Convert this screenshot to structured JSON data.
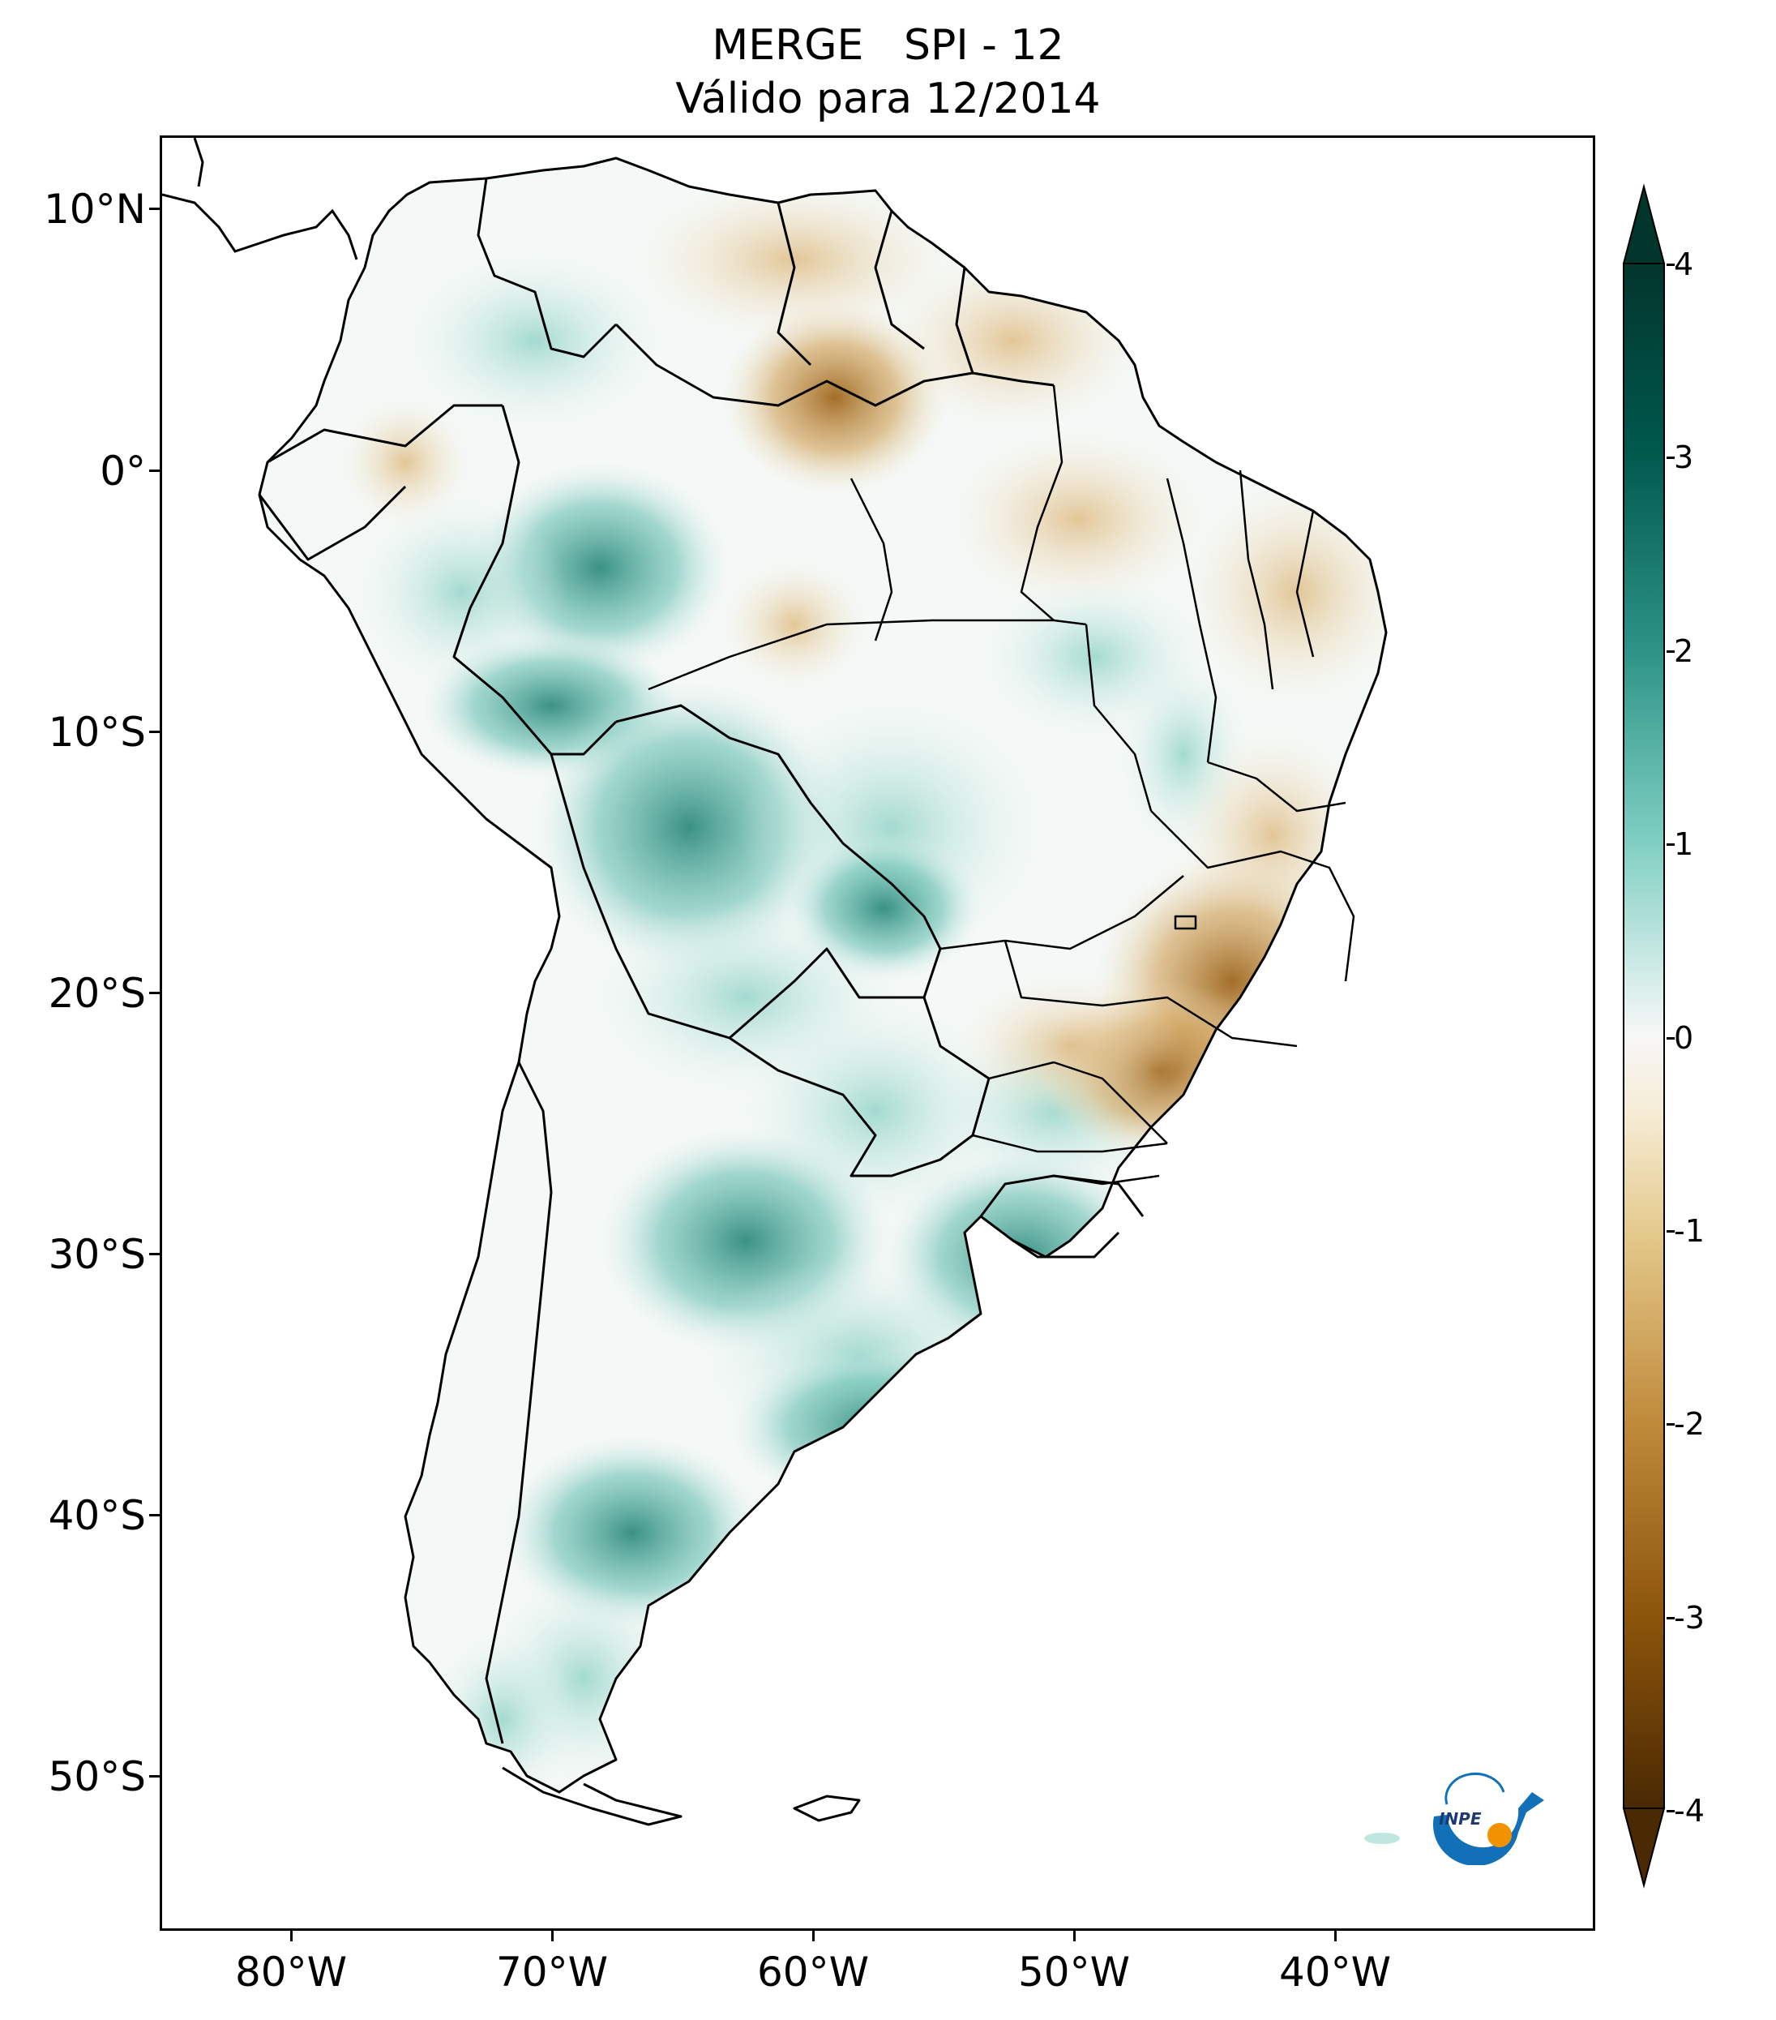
{
  "title_line1": "MERGE   SPI - 12",
  "title_line2": "Válido para 12/2014",
  "latitude_labels": [
    "10°N",
    "0°",
    "10°S",
    "20°S",
    "30°S",
    "40°S",
    "50°S"
  ],
  "longitude_labels": [
    "80°W",
    "70°W",
    "60°W",
    "50°W",
    "40°W"
  ],
  "colorbar": {
    "ticks": [
      "4",
      "3",
      "2",
      "1",
      "0",
      "-1",
      "-2",
      "-3",
      "-4"
    ],
    "min": -4,
    "max": 4,
    "extend": "both",
    "colors": [
      "#4a2903",
      "#8a530a",
      "#c08a3b",
      "#e3c88a",
      "#f6ecd5",
      "#f5f5f5",
      "#d2ece8",
      "#7ccdc0",
      "#2d9387",
      "#00584d",
      "#02352c"
    ]
  },
  "logo_text": "INPE",
  "map_extent": {
    "lon_min": -85,
    "lon_max": -30,
    "lat_min": -56,
    "lat_max": 13
  }
}
